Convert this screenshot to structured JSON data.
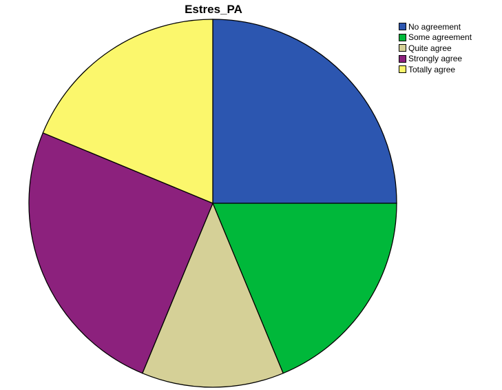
{
  "chart_data": {
    "type": "pie",
    "title": "Estres_PA",
    "start_angle": "12 o'clock",
    "direction": "clockwise",
    "legend_position": "top-right",
    "slices": [
      {
        "label": "No agreement",
        "value": 4,
        "color": "#2C56B0"
      },
      {
        "label": "Some agreement",
        "value": 3,
        "color": "#00B83A"
      },
      {
        "label": "Quite agree",
        "value": 2,
        "color": "#D5D097"
      },
      {
        "label": "Strongly agree",
        "value": 4,
        "color": "#8C217D"
      },
      {
        "label": "Totally agree",
        "value": 3,
        "color": "#FBF76C"
      }
    ]
  }
}
